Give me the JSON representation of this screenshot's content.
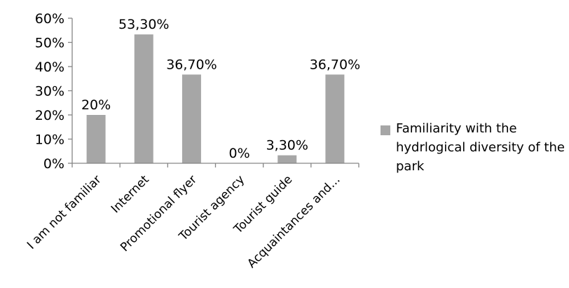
{
  "chart_data": {
    "type": "bar",
    "categories": [
      "I am not familiar",
      "Internet",
      "Promotional flyer",
      "Tourist agency",
      "Tourist guide",
      "Acquaintances and..."
    ],
    "series": [
      {
        "name": "Familiarity with the hydrlogical diversity of the park",
        "values": [
          20,
          53.3,
          36.7,
          0,
          3.3,
          36.7
        ],
        "data_labels": [
          "20%",
          "53,30%",
          "36,70%",
          "0%",
          "3,30%",
          "36,70%"
        ],
        "color": "#a6a6a6"
      }
    ],
    "yticks": [
      "0%",
      "10%",
      "20%",
      "30%",
      "40%",
      "50%",
      "60%"
    ],
    "ylim": [
      0,
      60
    ],
    "grid": false,
    "legend_position": "right",
    "title": "",
    "xlabel": "",
    "ylabel": ""
  }
}
